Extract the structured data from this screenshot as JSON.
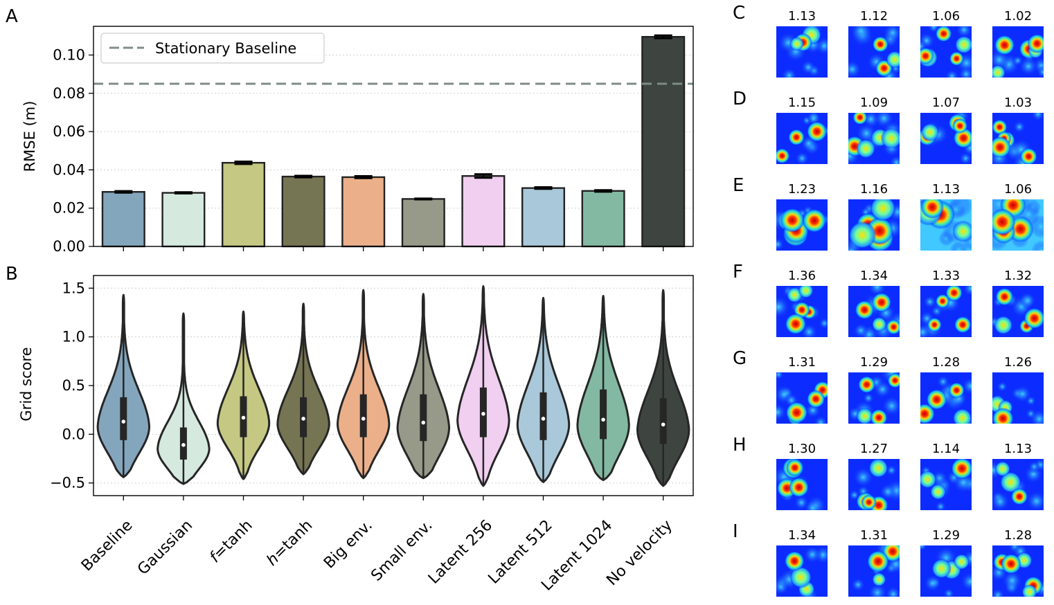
{
  "panel_letters": {
    "A": "A",
    "B": "B",
    "C": "C",
    "D": "D",
    "E": "E",
    "F": "F",
    "G": "G",
    "H": "H",
    "I": "I"
  },
  "chart_data": [
    {
      "id": "A",
      "type": "bar",
      "categories": [
        "Baseline",
        "Gaussian",
        "f=tanh",
        "h=tanh",
        "Big env.",
        "Small env.",
        "Latent 256",
        "Latent 512",
        "Latent 1024",
        "No velocity"
      ],
      "values": [
        0.0285,
        0.028,
        0.0437,
        0.0365,
        0.0362,
        0.0248,
        0.0368,
        0.0305,
        0.029,
        0.1095
      ],
      "errors": [
        0.0004,
        0.0003,
        0.0006,
        0.0004,
        0.0005,
        0.0002,
        0.0009,
        0.0004,
        0.0004,
        0.0007
      ],
      "colors": [
        "#84a6bd",
        "#d5e9df",
        "#c4c882",
        "#767553",
        "#ebb08a",
        "#979989",
        "#f1cff0",
        "#a9c8da",
        "#83b9a2",
        "#3e4540"
      ],
      "ylabel": "RMSE (m)",
      "ylim": [
        0,
        0.115
      ],
      "yticks": [
        "0.00",
        "0.02",
        "0.04",
        "0.06",
        "0.08",
        "0.10"
      ],
      "baseline": {
        "value": 0.085,
        "label": "Stationary Baseline",
        "color": "#7f8c85"
      },
      "grid": "horizontal-dotted",
      "legend": "top-left"
    },
    {
      "id": "B",
      "type": "violin",
      "categories": [
        "Baseline",
        "Gaussian",
        "f=tanh",
        "h=tanh",
        "Big env.",
        "Small env.",
        "Latent 256",
        "Latent 512",
        "Latent 1024",
        "No velocity"
      ],
      "tick_labels": [
        {
          "pre": "",
          "it": "",
          "post": "Baseline"
        },
        {
          "pre": "",
          "it": "",
          "post": "Gaussian"
        },
        {
          "pre": "",
          "it": "f",
          "post": "=tanh"
        },
        {
          "pre": "",
          "it": "h",
          "post": "=tanh"
        },
        {
          "pre": "",
          "it": "",
          "post": "Big env."
        },
        {
          "pre": "",
          "it": "",
          "post": "Small env."
        },
        {
          "pre": "",
          "it": "",
          "post": "Latent 256"
        },
        {
          "pre": "",
          "it": "",
          "post": "Latent 512"
        },
        {
          "pre": "",
          "it": "",
          "post": "Latent 1024"
        },
        {
          "pre": "",
          "it": "",
          "post": "No velocity"
        }
      ],
      "medians": [
        0.13,
        -0.11,
        0.17,
        0.16,
        0.16,
        0.12,
        0.21,
        0.16,
        0.15,
        0.1
      ],
      "q1": [
        -0.06,
        -0.26,
        -0.03,
        -0.03,
        -0.03,
        -0.07,
        -0.03,
        -0.06,
        -0.05,
        -0.1
      ],
      "q3": [
        0.38,
        0.07,
        0.39,
        0.38,
        0.41,
        0.41,
        0.48,
        0.43,
        0.46,
        0.37
      ],
      "min": [
        -0.44,
        -0.51,
        -0.46,
        -0.41,
        -0.45,
        -0.45,
        -0.53,
        -0.49,
        -0.47,
        -0.53
      ],
      "max": [
        1.43,
        1.24,
        1.26,
        1.34,
        1.48,
        1.44,
        1.52,
        1.4,
        1.42,
        1.48
      ],
      "colors": [
        "#84a6bd",
        "#d5e9df",
        "#c4c882",
        "#767553",
        "#ebb08a",
        "#979989",
        "#f1cff0",
        "#a9c8da",
        "#83b9a2",
        "#3e4540"
      ],
      "ylabel": "Grid score",
      "ylim": [
        -0.63,
        1.63
      ],
      "yticks": [
        "−0.5",
        "0.0",
        "0.5",
        "1.0",
        "1.5"
      ],
      "grid": "horizontal-dotted"
    }
  ],
  "heatmap_rows": [
    {
      "letter": "C",
      "scores": [
        "1.13",
        "1.12",
        "1.06",
        "1.02"
      ]
    },
    {
      "letter": "D",
      "scores": [
        "1.15",
        "1.09",
        "1.07",
        "1.03"
      ]
    },
    {
      "letter": "E",
      "scores": [
        "1.23",
        "1.16",
        "1.13",
        "1.06"
      ]
    },
    {
      "letter": "F",
      "scores": [
        "1.36",
        "1.34",
        "1.33",
        "1.32"
      ]
    },
    {
      "letter": "G",
      "scores": [
        "1.31",
        "1.29",
        "1.28",
        "1.26"
      ]
    },
    {
      "letter": "H",
      "scores": [
        "1.30",
        "1.27",
        "1.14",
        "1.13"
      ]
    },
    {
      "letter": "I",
      "scores": [
        "1.34",
        "1.31",
        "1.29",
        "1.28"
      ]
    }
  ]
}
